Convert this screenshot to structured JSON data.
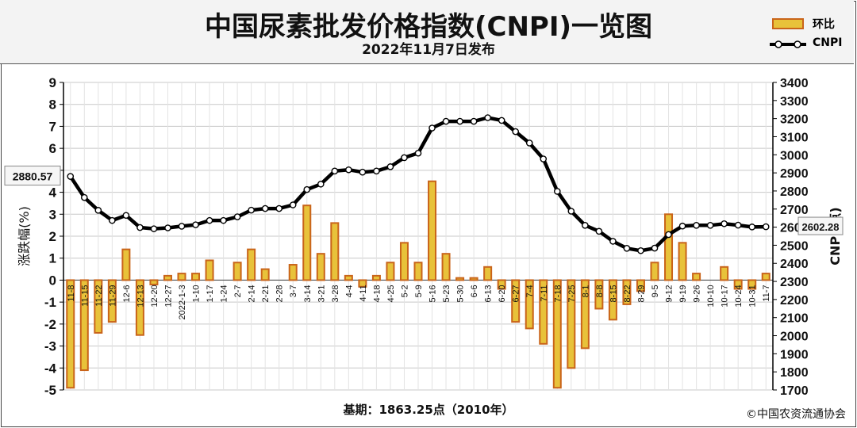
{
  "header": {
    "title": "中国尿素批发价格指数(CNPI)一览图",
    "subtitle": "2022年11月7日发布"
  },
  "footer": {
    "base_period": "基期：1863.25点（2010年）",
    "copyright": "©中国农资流通协会"
  },
  "colors": {
    "bar_fill": "#e8c23a",
    "bar_edge": "#c9641a",
    "line": "#000000",
    "marker_fill": "#ffffff",
    "plot_bg": "#ffffff",
    "grid": "#c8c8c8"
  },
  "chart_data": {
    "type": "bar",
    "title": "中国尿素批发价格指数(CNPI)一览图",
    "subtitle": "2022年11月7日发布",
    "categories": [
      "11-8",
      "11-15",
      "11-22",
      "11-29",
      "12-6",
      "12-13",
      "12-20",
      "12-27",
      "2022-1-3",
      "1-10",
      "1-17",
      "1-24",
      "2-7",
      "2-14",
      "2-21",
      "2-28",
      "3-7",
      "3-14",
      "3-21",
      "3-28",
      "4-4",
      "4-11",
      "4-18",
      "4-25",
      "5-2",
      "5-9",
      "5-16",
      "5-23",
      "5-30",
      "6-6",
      "6-13",
      "6-20",
      "6-27",
      "7-4",
      "7-11",
      "7-18",
      "7-25",
      "8-1",
      "8-8",
      "8-15",
      "8-22",
      "8-29",
      "9-5",
      "9-12",
      "9-19",
      "9-26",
      "10-10",
      "10-17",
      "10-24",
      "10-31",
      "11-7"
    ],
    "ylabel_left": "涨跌幅(%)",
    "ylabel_right": "CNPI(点)",
    "ylim_left": [
      -5,
      9
    ],
    "ylim_right": [
      1700,
      3400
    ],
    "yticks_left": [
      -5,
      -4,
      -3,
      -2,
      -1,
      0,
      1,
      2,
      3,
      4,
      5,
      6,
      7,
      8,
      9
    ],
    "yticks_right": [
      1700,
      1800,
      1900,
      2000,
      2100,
      2200,
      2300,
      2400,
      2500,
      2600,
      2700,
      2800,
      2900,
      3000,
      3100,
      3200,
      3300,
      3400
    ],
    "grid": true,
    "legend_position": "top-right",
    "series": [
      {
        "name": "环比",
        "type": "bar",
        "axis": "left",
        "values": [
          -4.9,
          -4.1,
          -2.4,
          -1.9,
          1.4,
          -2.5,
          -0.2,
          0.2,
          0.3,
          0.3,
          0.9,
          0.0,
          0.8,
          1.4,
          0.5,
          0.0,
          0.7,
          3.4,
          1.2,
          2.6,
          0.2,
          -0.3,
          0.2,
          0.8,
          1.7,
          0.8,
          4.5,
          1.2,
          0.1,
          0.1,
          0.6,
          -0.4,
          -1.9,
          -2.2,
          -2.9,
          -4.9,
          -4.0,
          -3.1,
          -1.3,
          -1.8,
          -1.1,
          -0.5,
          0.8,
          3.0,
          1.7,
          0.3,
          0.0,
          0.6,
          -0.4,
          -0.4,
          0.3
        ]
      },
      {
        "name": "CNPI",
        "type": "line",
        "axis": "right",
        "values": [
          2880.57,
          2764,
          2693,
          2637,
          2665,
          2598,
          2591,
          2596,
          2605,
          2613,
          2637,
          2637,
          2657,
          2694,
          2703,
          2703,
          2723,
          2808,
          2838,
          2910,
          2917,
          2904,
          2910,
          2934,
          2984,
          3009,
          3148,
          3185,
          3185,
          3185,
          3205,
          3190,
          3128,
          3065,
          2977,
          2798,
          2688,
          2610,
          2577,
          2522,
          2483,
          2470,
          2484,
          2559,
          2606,
          2610,
          2610,
          2619,
          2611,
          2601,
          2602.28
        ]
      }
    ],
    "annotations": [
      {
        "text": "2880.57",
        "series": "CNPI",
        "point": "first"
      },
      {
        "text": "2602.28",
        "series": "CNPI",
        "point": "last"
      }
    ]
  },
  "legend": {
    "bar_label": "环比",
    "line_label": "CNPI"
  }
}
